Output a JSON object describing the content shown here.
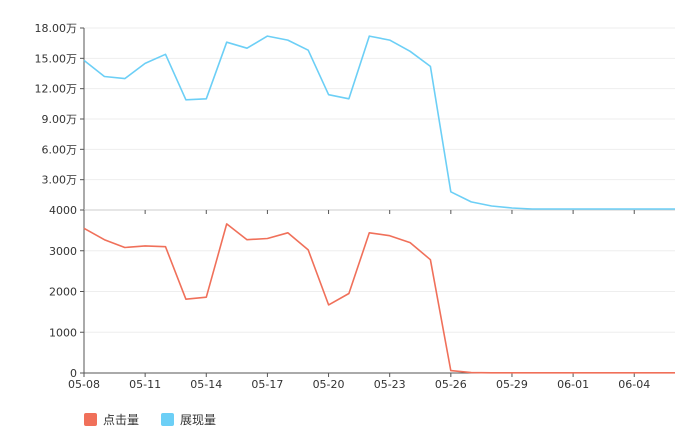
{
  "chart_data": [
    {
      "type": "line",
      "panel": "top",
      "categories": [
        "05-08",
        "05-09",
        "05-10",
        "05-11",
        "05-12",
        "05-13",
        "05-14",
        "05-15",
        "05-16",
        "05-17",
        "05-18",
        "05-19",
        "05-20",
        "05-21",
        "05-22",
        "05-23",
        "05-24",
        "05-25",
        "05-26",
        "05-27",
        "05-28",
        "05-29",
        "05-30",
        "05-31",
        "06-01",
        "06-02",
        "06-03",
        "06-04",
        "06-05",
        "06-06"
      ],
      "x_tick_labels": [
        "05-08",
        "05-11",
        "05-14",
        "05-17",
        "05-20",
        "05-23",
        "05-26",
        "05-29",
        "06-01",
        "06-04"
      ],
      "series": [
        {
          "name": "展现量",
          "color": "#6ccff6",
          "values": [
            148000,
            132000,
            130000,
            145000,
            154000,
            109000,
            110000,
            166000,
            160000,
            172000,
            168000,
            158000,
            114000,
            110000,
            172000,
            168000,
            157000,
            142000,
            18000,
            8000,
            4000,
            2000,
            1000,
            1000,
            1000,
            1000,
            1000,
            1000,
            1000,
            1000
          ]
        }
      ],
      "ylim": [
        0,
        180000
      ],
      "y_tick_labels": [
        "18.00万",
        "15.00万",
        "12.00万",
        "9.00万",
        "6.00万",
        "3.00万"
      ]
    },
    {
      "type": "line",
      "panel": "bottom",
      "categories": [
        "05-08",
        "05-09",
        "05-10",
        "05-11",
        "05-12",
        "05-13",
        "05-14",
        "05-15",
        "05-16",
        "05-17",
        "05-18",
        "05-19",
        "05-20",
        "05-21",
        "05-22",
        "05-23",
        "05-24",
        "05-25",
        "05-26",
        "05-27",
        "05-28",
        "05-29",
        "05-30",
        "05-31",
        "06-01",
        "06-02",
        "06-03",
        "06-04",
        "06-05",
        "06-06"
      ],
      "x_tick_labels": [
        "05-08",
        "05-11",
        "05-14",
        "05-17",
        "05-20",
        "05-23",
        "05-26",
        "05-29",
        "06-01",
        "06-04"
      ],
      "series": [
        {
          "name": "点击量",
          "color": "#f0705a",
          "values": [
            3550,
            3270,
            3080,
            3120,
            3100,
            1810,
            1860,
            3660,
            3270,
            3300,
            3440,
            3020,
            1670,
            1950,
            3440,
            3370,
            3200,
            2780,
            60,
            10,
            5,
            5,
            5,
            5,
            5,
            5,
            5,
            5,
            5,
            5
          ]
        }
      ],
      "ylim": [
        0,
        4000
      ],
      "y_tick_labels": [
        "4000",
        "3000",
        "2000",
        "1000",
        "0"
      ]
    }
  ],
  "legend": [
    {
      "label": "点击量",
      "color": "#f0705a"
    },
    {
      "label": "展现量",
      "color": "#6ccff6"
    }
  ]
}
